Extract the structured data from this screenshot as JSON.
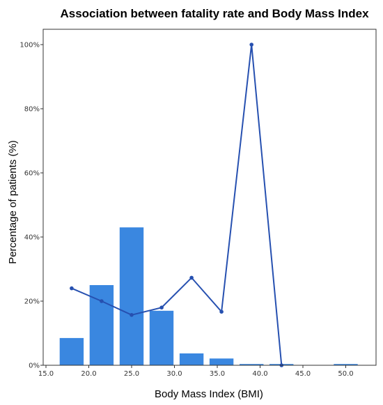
{
  "chart_data": {
    "type": "bar",
    "title": "Association between fatality rate and Body Mass Index",
    "xlabel": "Body Mass Index (BMI)",
    "ylabel": "Percentage of patients (%)",
    "xlim": [
      15.0,
      52.5
    ],
    "ylim": [
      0,
      1.0
    ],
    "x_ticks": [
      "15.0",
      "20.0",
      "25.0",
      "30.0",
      "35.0",
      "40.0",
      "45.0",
      "50.0"
    ],
    "y_ticks": [
      "0%",
      "20%",
      "40%",
      "60%",
      "80%",
      "100%"
    ],
    "bar_width": 2.8,
    "bars": {
      "x": [
        18.0,
        21.5,
        25.0,
        28.5,
        32.0,
        35.5,
        39.0,
        42.5,
        50.0
      ],
      "values": [
        0.085,
        0.25,
        0.43,
        0.17,
        0.037,
        0.021,
        0.004,
        0.004,
        0.004
      ]
    },
    "line": {
      "x": [
        18.0,
        21.5,
        25.0,
        28.5,
        32.0,
        35.5,
        39.0,
        42.5
      ],
      "values": [
        0.24,
        0.2,
        0.157,
        0.18,
        0.273,
        0.167,
        1.0,
        0.0
      ]
    }
  }
}
